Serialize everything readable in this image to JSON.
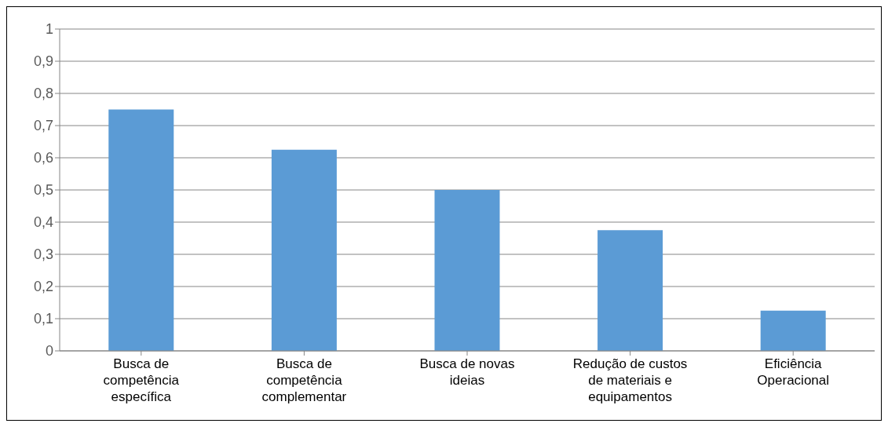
{
  "chart_data": {
    "type": "bar",
    "categories": [
      "Busca de competência específica",
      "Busca de competência complementar",
      "Busca de novas ideias",
      "Redução de custos de materiais e equipamentos",
      "Eficiência Operacional"
    ],
    "values": [
      0.75,
      0.625,
      0.5,
      0.375,
      0.125
    ],
    "color": "#5b9bd5",
    "ylim": [
      0,
      1
    ],
    "yticks": [
      0,
      {
        "value": 0.1,
        "label": "0,1"
      },
      {
        "value": 0.2,
        "label": "0,2"
      },
      {
        "value": 0.3,
        "label": "0,3"
      },
      {
        "value": 0.4,
        "label": "0,4"
      },
      {
        "value": 0.5,
        "label": "0,5"
      },
      {
        "value": 0.6,
        "label": "0,6"
      },
      {
        "value": 0.7,
        "label": "0,7"
      },
      {
        "value": 0.8,
        "label": "0,8"
      },
      {
        "value": 0.9,
        "label": "0,9"
      },
      1
    ],
    "grid": "y"
  }
}
